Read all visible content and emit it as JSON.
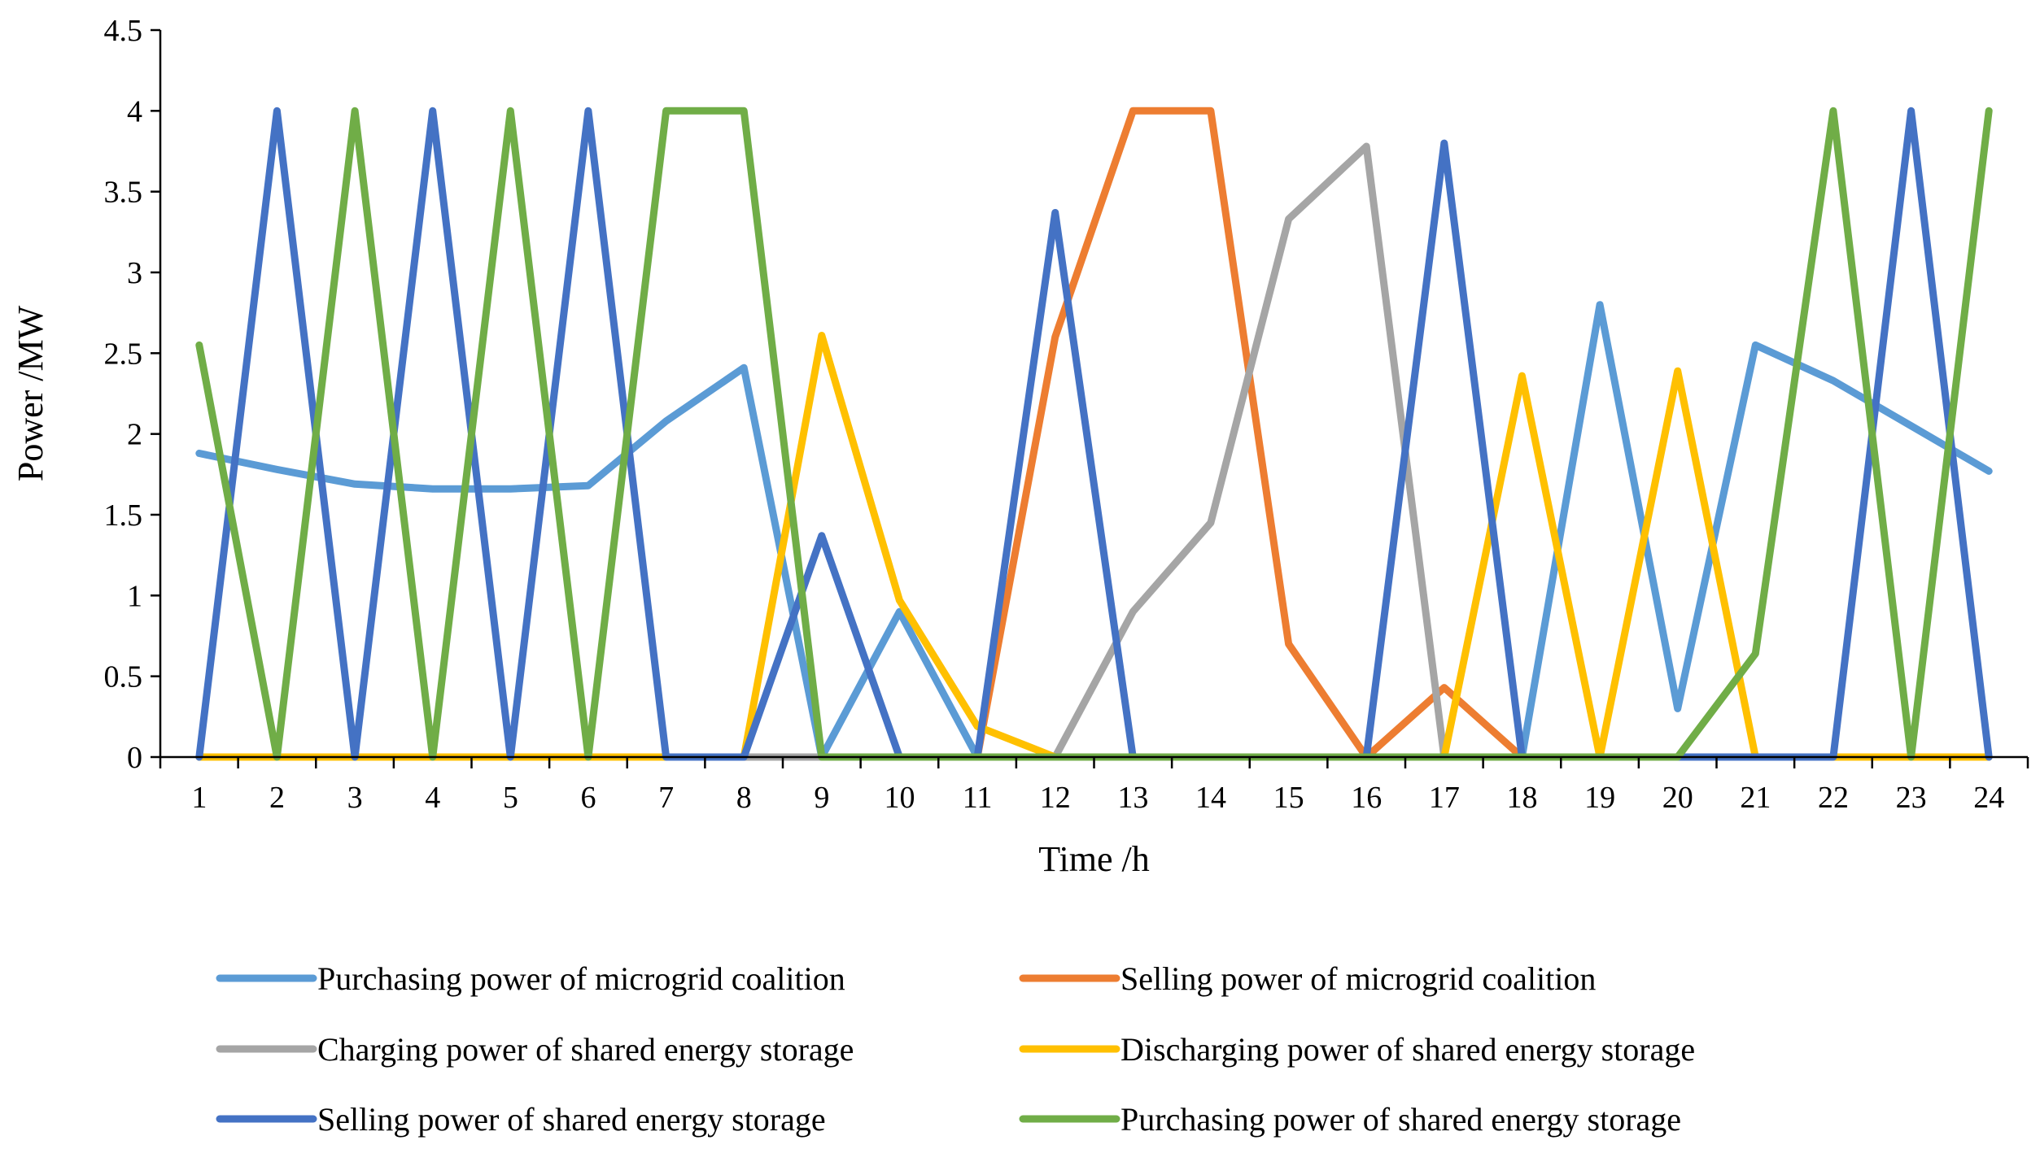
{
  "chart_data": {
    "type": "line",
    "title": "",
    "xlabel": "Time /h",
    "ylabel": "Power /MW",
    "x": [
      1,
      2,
      3,
      4,
      5,
      6,
      7,
      8,
      9,
      10,
      11,
      12,
      13,
      14,
      15,
      16,
      17,
      18,
      19,
      20,
      21,
      22,
      23,
      24
    ],
    "x_tick_labels": [
      "1",
      "2",
      "3",
      "4",
      "5",
      "6",
      "7",
      "8",
      "9",
      "10",
      "11",
      "12",
      "13",
      "14",
      "15",
      "16",
      "17",
      "18",
      "19",
      "20",
      "21",
      "22",
      "23",
      "24"
    ],
    "ylim": [
      0,
      4.5
    ],
    "y_ticks": [
      0,
      0.5,
      1,
      1.5,
      2,
      2.5,
      3,
      3.5,
      4,
      4.5
    ],
    "y_tick_labels": [
      "0",
      "0.5",
      "1",
      "1.5",
      "2",
      "2.5",
      "3",
      "3.5",
      "4",
      "4.5"
    ],
    "grid": false,
    "legend_position": "bottom",
    "series": [
      {
        "name": "Purchasing power of microgrid coalition",
        "color": "#5B9BD5",
        "values": [
          1.88,
          1.78,
          1.69,
          1.66,
          1.66,
          1.68,
          2.08,
          2.41,
          0,
          0.9,
          0,
          0,
          0,
          0,
          0,
          0,
          0,
          0,
          2.8,
          0.3,
          2.55,
          2.33,
          2.05,
          1.77
        ]
      },
      {
        "name": "Selling power of microgrid coalition",
        "color": "#ED7D31",
        "values": [
          0,
          0,
          0,
          0,
          0,
          0,
          0,
          0,
          0,
          0,
          0,
          2.6,
          4,
          4,
          0.7,
          0,
          0.43,
          0,
          0,
          0,
          0,
          0,
          0,
          0
        ]
      },
      {
        "name": "Charging power of shared energy storage",
        "color": "#A5A5A5",
        "values": [
          0,
          0,
          0,
          0,
          0,
          0,
          0,
          0,
          0,
          0,
          0,
          0,
          0.9,
          1.45,
          3.33,
          3.78,
          0,
          0,
          0,
          0,
          0,
          0,
          0,
          0
        ]
      },
      {
        "name": "Discharging power of shared energy storage",
        "color": "#FFC000",
        "values": [
          0,
          0,
          0,
          0,
          0,
          0,
          0,
          0,
          2.61,
          0.97,
          0.19,
          0,
          0,
          0,
          0,
          0,
          0,
          2.36,
          0,
          2.39,
          0,
          0,
          0,
          0
        ]
      },
      {
        "name": "Selling power of shared energy storage",
        "color": "#4472C4",
        "values": [
          0,
          4,
          0,
          4,
          0,
          4,
          0,
          0,
          1.37,
          0,
          0,
          3.37,
          0,
          0,
          0,
          0,
          3.8,
          0,
          0,
          0,
          0,
          0,
          4,
          0
        ]
      },
      {
        "name": "Purchasing power of shared energy storage",
        "color": "#70AD47",
        "values": [
          2.55,
          0,
          4,
          0,
          4,
          0,
          4,
          4,
          0,
          0,
          0,
          0,
          0,
          0,
          0,
          0,
          0,
          0,
          0,
          0,
          0.64,
          4,
          0,
          4
        ]
      }
    ]
  }
}
